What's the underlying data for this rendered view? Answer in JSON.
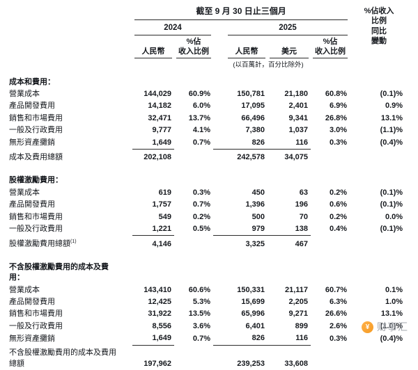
{
  "colors": {
    "text": "#15181d",
    "rule_line": "#2a2a2a",
    "watermark_text": "#a3a7ad",
    "logo_orange": "#f59a23"
  },
  "header": {
    "period_title": "截至 9 月 30 日止三個月",
    "yoy_lines": [
      "%佔收入",
      "比例",
      "同比",
      "變動"
    ],
    "year_2024": "2024",
    "year_2025": "2025",
    "col_rmb": "人民幣",
    "col_usd": "美元",
    "col_pct_line1": "%佔",
    "col_pct_line2": "收入比例",
    "unit_note": "(以百萬計，百分比除外)"
  },
  "sections": [
    {
      "title": "成本和費用：",
      "rows": [
        {
          "label": "營業成本",
          "cells": [
            "144,029",
            "60.9%",
            "150,781",
            "21,180",
            "60.8%",
            "(0.1)%"
          ]
        },
        {
          "label": "產品開發費用",
          "cells": [
            "14,182",
            "6.0%",
            "17,095",
            "2,401",
            "6.9%",
            "0.9%"
          ]
        },
        {
          "label": "銷售和市場費用",
          "cells": [
            "32,471",
            "13.7%",
            "66,496",
            "9,341",
            "26.8%",
            "13.1%"
          ]
        },
        {
          "label": "一般及行政費用",
          "cells": [
            "9,777",
            "4.1%",
            "7,380",
            "1,037",
            "3.0%",
            "(1.1)%"
          ]
        },
        {
          "label": "無形資產攤銷",
          "cells": [
            "1,649",
            "0.7%",
            "826",
            "116",
            "0.3%",
            "(0.4)%"
          ]
        }
      ],
      "total": {
        "label": "成本及費用總額",
        "cells": [
          "202,108",
          "",
          "242,578",
          "34,075",
          "",
          ""
        ]
      }
    },
    {
      "title": "股權激勵費用：",
      "rows": [
        {
          "label": "營業成本",
          "cells": [
            "619",
            "0.3%",
            "450",
            "63",
            "0.2%",
            "(0.1)%"
          ]
        },
        {
          "label": "產品開發費用",
          "cells": [
            "1,757",
            "0.7%",
            "1,396",
            "196",
            "0.6%",
            "(0.1)%"
          ]
        },
        {
          "label": "銷售和市場費用",
          "cells": [
            "549",
            "0.2%",
            "500",
            "70",
            "0.2%",
            "0.0%"
          ]
        },
        {
          "label": "一般及行政費用",
          "cells": [
            "1,221",
            "0.5%",
            "979",
            "138",
            "0.4%",
            "(0.1)%"
          ]
        }
      ],
      "total": {
        "label": "股權激勵費用總額",
        "sup": "(1)",
        "cells": [
          "4,146",
          "",
          "3,325",
          "467",
          "",
          ""
        ]
      }
    },
    {
      "title": "不含股權激勵費用的成本及費用：",
      "rows": [
        {
          "label": "營業成本",
          "cells": [
            "143,410",
            "60.6%",
            "150,331",
            "21,117",
            "60.7%",
            "0.1%"
          ]
        },
        {
          "label": "產品開發費用",
          "cells": [
            "12,425",
            "5.3%",
            "15,699",
            "2,205",
            "6.3%",
            "1.0%"
          ]
        },
        {
          "label": "銷售和市場費用",
          "cells": [
            "31,922",
            "13.5%",
            "65,996",
            "9,271",
            "26.6%",
            "13.1%"
          ]
        },
        {
          "label": "一般及行政費用",
          "cells": [
            "8,556",
            "3.6%",
            "6,401",
            "899",
            "2.6%",
            "(1.0)%"
          ]
        },
        {
          "label": "無形資產攤銷",
          "cells": [
            "1,649",
            "0.7%",
            "826",
            "116",
            "0.3%",
            "(0.4)%"
          ]
        }
      ],
      "total": {
        "label": "不含股權激勵費用的成本及費用總額",
        "wrap": true,
        "cells": [
          "197,962",
          "",
          "239,253",
          "33,608",
          "",
          ""
        ]
      }
    }
  ],
  "watermark": {
    "logo_glyph": "¥",
    "label": "财事汇"
  }
}
